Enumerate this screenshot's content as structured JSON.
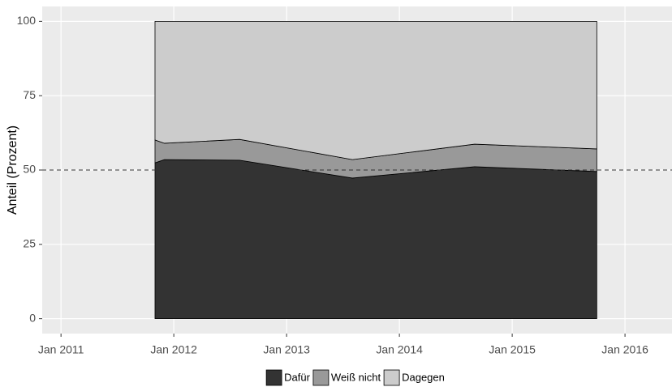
{
  "chart_data": {
    "type": "stacked-area",
    "y_label": "Anteil (Prozent)",
    "x": [
      "2011-11",
      "2011-12",
      "2012-08",
      "2013-08",
      "2014-09",
      "2015-10"
    ],
    "series": [
      {
        "name": "Dafür",
        "color": "#333333",
        "values": [
          52.4,
          53.5,
          53.3,
          47.3,
          51.1,
          49.5
        ]
      },
      {
        "name": "Weiß nicht",
        "color": "#999999",
        "values": [
          7.7,
          5.5,
          7.0,
          6.2,
          7.6,
          7.6
        ]
      },
      {
        "name": "Dagegen",
        "color": "#cccccc",
        "values": [
          39.9,
          41.0,
          39.7,
          46.5,
          41.3,
          42.9
        ]
      }
    ],
    "xlim": [
      "2010-11",
      "2016-06"
    ],
    "xticks": [
      {
        "value": "2011-01",
        "label": "Jan 2011"
      },
      {
        "value": "2012-01",
        "label": "Jan 2012"
      },
      {
        "value": "2013-01",
        "label": "Jan 2013"
      },
      {
        "value": "2014-01",
        "label": "Jan 2014"
      },
      {
        "value": "2015-01",
        "label": "Jan 2015"
      },
      {
        "value": "2016-01",
        "label": "Jan 2016"
      }
    ],
    "ylim": [
      -5,
      105
    ],
    "yticks": [
      0,
      25,
      50,
      75,
      100
    ],
    "hline": 50,
    "grid": true,
    "legend": "bottom"
  }
}
